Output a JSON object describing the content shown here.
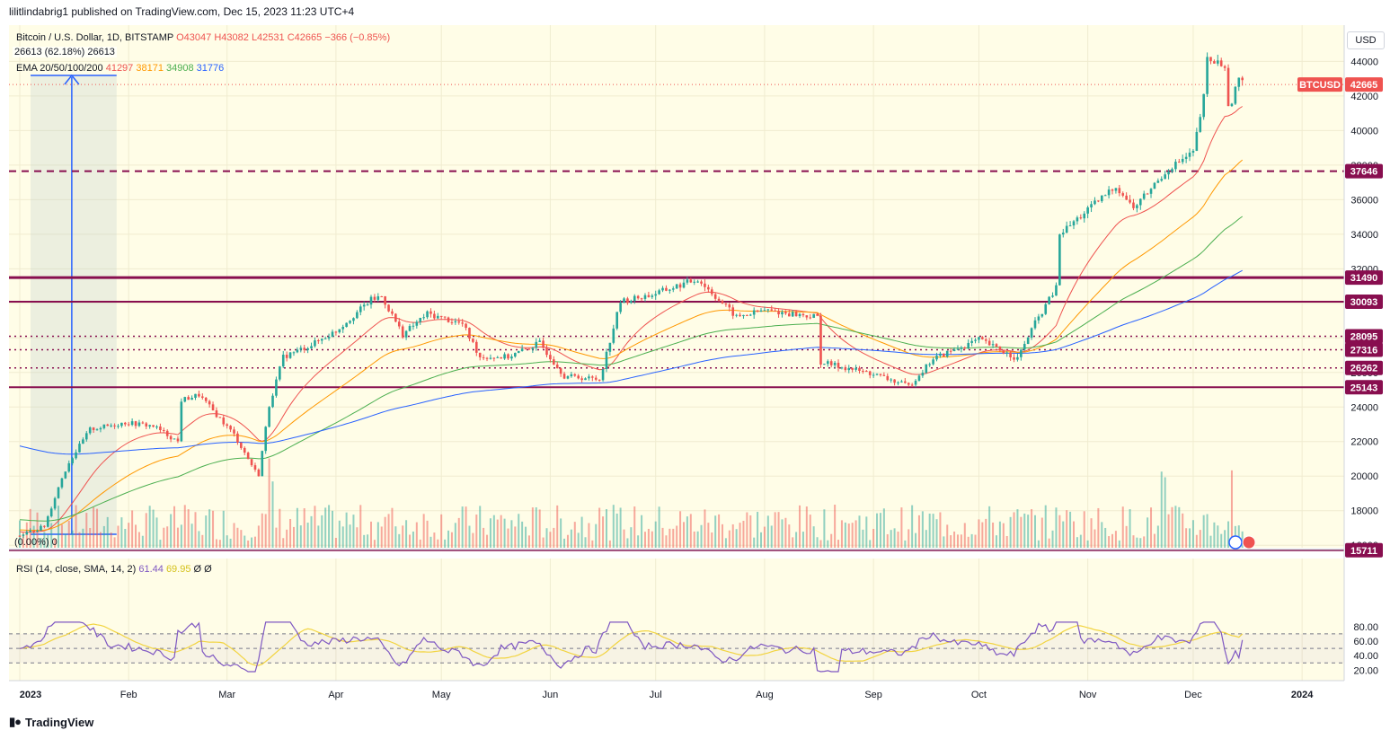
{
  "caption": "lilitlindabrig1 published on TradingView.com, Dec 15, 2023 11:23 UTC+4",
  "brand": "TradingView",
  "currency_button": "USD",
  "legend": {
    "symbol": "Bitcoin / U.S. Dollar, 1D, BITSTAMP",
    "open": "O43047",
    "high": "H43082",
    "low": "L42531",
    "close": "C42665",
    "change": "−366 (−0.85%)",
    "measure": "26613 (62.18%) 26613",
    "ema_label": "EMA 20/50/100/200",
    "ema20": "41297",
    "ema50": "38171",
    "ema100": "34908",
    "ema200": "31776",
    "percent_marker": "(0.00%) 0",
    "rsi_label": "RSI (14, close, SMA, 14, 2)",
    "rsi_value": "61.44",
    "rsi_sma": "69.95",
    "rsi_extra": "Ø Ø"
  },
  "chart_data": [
    {
      "type": "candlestick",
      "symbol": "BTCUSD",
      "price_axis": {
        "ticks": [
          16000,
          18000,
          20000,
          22000,
          24000,
          26000,
          28000,
          30000,
          32000,
          34000,
          36000,
          38000,
          40000,
          42000,
          44000
        ],
        "tick_labels": [
          "16000",
          "18000",
          "20000",
          "22000",
          "24000",
          "26000",
          "28000",
          "30000",
          "32000",
          "34000",
          "36000",
          "38000",
          "40000",
          "42000",
          "44000"
        ],
        "range": [
          15600,
          46500
        ]
      },
      "time_axis": {
        "labels": [
          "2023",
          "Feb",
          "Mar",
          "Apr",
          "May",
          "Jun",
          "Jul",
          "Aug",
          "Sep",
          "Oct",
          "Nov",
          "Dec",
          "2024"
        ]
      },
      "last_price": {
        "label": "BTCUSD",
        "value": "42665",
        "price": 42665,
        "color": "#ef5350"
      },
      "horizontal_levels": [
        {
          "value": "37646",
          "price": 37646,
          "style": "dashed"
        },
        {
          "value": "31490",
          "price": 31490,
          "style": "solid-thick"
        },
        {
          "value": "30093",
          "price": 30093,
          "style": "solid"
        },
        {
          "value": "28095",
          "price": 28095,
          "style": "dotted"
        },
        {
          "value": "27316",
          "price": 27316,
          "style": "dotted"
        },
        {
          "value": "26262",
          "price": 26262,
          "style": "dotted"
        },
        {
          "value": "25143",
          "price": 25143,
          "style": "solid"
        },
        {
          "value": "15711",
          "price": 15711,
          "style": "solid"
        }
      ],
      "close_path": [
        [
          "2023-01-01",
          16550
        ],
        [
          "2023-01-08",
          17100
        ],
        [
          "2023-01-13",
          19900
        ],
        [
          "2023-01-15",
          20800
        ],
        [
          "2023-01-21",
          22700
        ],
        [
          "2023-01-31",
          23100
        ],
        [
          "2023-02-08",
          22900
        ],
        [
          "2023-02-15",
          22000
        ],
        [
          "2023-02-16",
          24400
        ],
        [
          "2023-02-21",
          24700
        ],
        [
          "2023-03-03",
          22400
        ],
        [
          "2023-03-09",
          20300
        ],
        [
          "2023-03-10",
          20100
        ],
        [
          "2023-03-13",
          24100
        ],
        [
          "2023-03-17",
          26900
        ],
        [
          "2023-03-25",
          27600
        ],
        [
          "2023-04-01",
          28400
        ],
        [
          "2023-04-11",
          30200
        ],
        [
          "2023-04-14",
          30400
        ],
        [
          "2023-04-20",
          28200
        ],
        [
          "2023-04-27",
          29400
        ],
        [
          "2023-05-07",
          28800
        ],
        [
          "2023-05-12",
          26900
        ],
        [
          "2023-05-20",
          26900
        ],
        [
          "2023-05-29",
          27700
        ],
        [
          "2023-06-05",
          25800
        ],
        [
          "2023-06-15",
          25600
        ],
        [
          "2023-06-21",
          30100
        ],
        [
          "2023-06-30",
          30500
        ],
        [
          "2023-07-13",
          31400
        ],
        [
          "2023-07-24",
          29200
        ],
        [
          "2023-08-01",
          29600
        ],
        [
          "2023-08-16",
          29200
        ],
        [
          "2023-08-17",
          26600
        ],
        [
          "2023-09-01",
          25900
        ],
        [
          "2023-09-11",
          25200
        ],
        [
          "2023-09-18",
          26800
        ],
        [
          "2023-10-01",
          27900
        ],
        [
          "2023-10-12",
          26800
        ],
        [
          "2023-10-16",
          28500
        ],
        [
          "2023-10-23",
          30900
        ],
        [
          "2023-10-24",
          34000
        ],
        [
          "2023-11-01",
          35400
        ],
        [
          "2023-11-09",
          36800
        ],
        [
          "2023-11-14",
          35500
        ],
        [
          "2023-11-24",
          37800
        ],
        [
          "2023-12-01",
          38700
        ],
        [
          "2023-12-04",
          41900
        ],
        [
          "2023-12-05",
          44100
        ],
        [
          "2023-12-10",
          43800
        ],
        [
          "2023-12-11",
          41200
        ],
        [
          "2023-12-14",
          43000
        ],
        [
          "2023-12-15",
          42665
        ]
      ],
      "ema_lines": [
        {
          "name": "EMA 20",
          "value": "41297",
          "color": "#ef5350"
        },
        {
          "name": "EMA 50",
          "value": "38171",
          "color": "#ff9800"
        },
        {
          "name": "EMA 100",
          "value": "34908",
          "color": "#4caf50"
        },
        {
          "name": "EMA 200",
          "value": "31776",
          "color": "#2962ff"
        }
      ],
      "volume": "shown as bars at bottom of price pane",
      "measure_tool": {
        "label": "26613 (62.18%) 26613",
        "start": "2023-01-01",
        "end": "2023-01-26"
      }
    },
    {
      "type": "line",
      "name": "RSI",
      "ylim": [
        10,
        92
      ],
      "ticks": [
        20,
        40,
        60,
        80
      ],
      "tick_labels": [
        "20.00",
        "40.00",
        "60.00",
        "80.00"
      ],
      "bands": [
        70,
        50,
        30
      ],
      "rsi_last": 61.44,
      "sma_last": 69.95
    }
  ],
  "colors": {
    "up": "#26a69a",
    "down": "#ef5350",
    "level": "#880e4f",
    "pane_bg": "#fffde7",
    "ema20": "#ef5350",
    "ema50": "#ff9800",
    "ema100": "#4caf50",
    "ema200": "#2962ff",
    "rsi": "#7e57c2",
    "rsi_sma": "#f2d440"
  }
}
